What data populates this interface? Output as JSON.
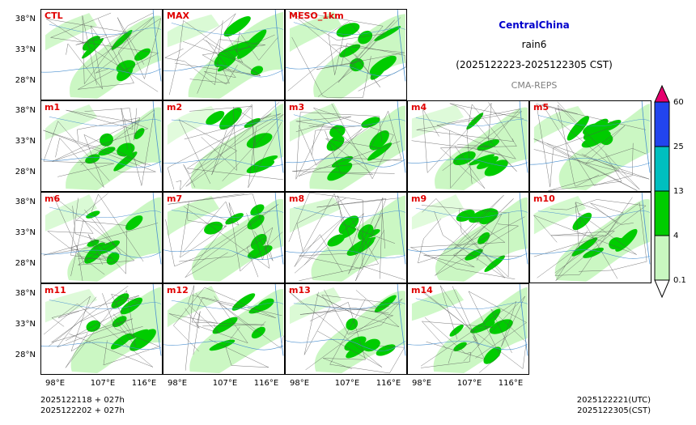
{
  "title": {
    "region": "CentralChina",
    "variable": "rain6",
    "period": "(2025122223-2025122305 CST)",
    "source": "CMA-REPS",
    "region_color": "#0000cc",
    "source_color": "#808080"
  },
  "panels": [
    {
      "label": "CTL",
      "density": 0.55
    },
    {
      "label": "MAX",
      "density": 0.85
    },
    {
      "label": "MESO_1km",
      "density": 0.6
    },
    {
      "label": "m1",
      "density": 0.5
    },
    {
      "label": "m2",
      "density": 0.55
    },
    {
      "label": "m3",
      "density": 0.6
    },
    {
      "label": "m4",
      "density": 0.45
    },
    {
      "label": "m5",
      "density": 0.6
    },
    {
      "label": "m6",
      "density": 0.5
    },
    {
      "label": "m7",
      "density": 0.55
    },
    {
      "label": "m8",
      "density": 0.6
    },
    {
      "label": "m9",
      "density": 0.5
    },
    {
      "label": "m10",
      "density": 0.55
    },
    {
      "label": "m11",
      "density": 0.6
    },
    {
      "label": "m12",
      "density": 0.5
    },
    {
      "label": "m13",
      "density": 0.55
    },
    {
      "label": "m14",
      "density": 0.45
    }
  ],
  "axes": {
    "lat_labels": [
      "38°N",
      "33°N",
      "28°N"
    ],
    "lon_labels": [
      "98°E",
      "107°E",
      "116°E"
    ]
  },
  "colorbar": {
    "levels": [
      "0.1",
      "4",
      "13",
      "25",
      "60"
    ],
    "colors": [
      "#c8f7c0",
      "#00cc00",
      "#00bfbf",
      "#2244ee",
      "#e6006e"
    ],
    "under_color": "#ffffff"
  },
  "footer": {
    "left_line1": "2025122118  +  027h",
    "left_line2": "2025122202  +  027h",
    "right_line1": "2025122221(UTC)",
    "right_line2": "2025122305(CST)"
  },
  "colors": {
    "light_green": "#c8f7c0",
    "green": "#00cc00",
    "river": "#4a90d0",
    "border": "#555555"
  }
}
